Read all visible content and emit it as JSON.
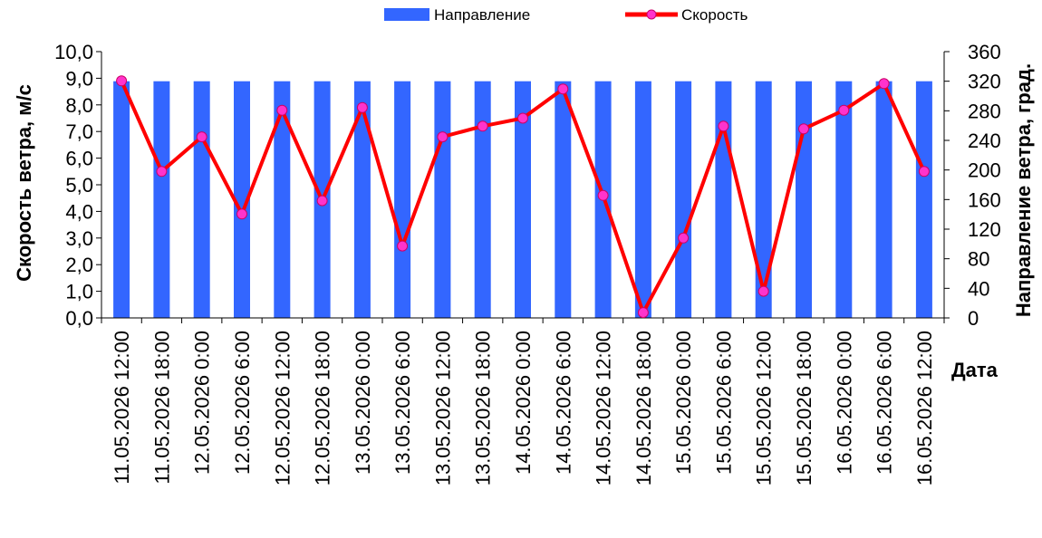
{
  "chart_data": {
    "type": "bar+line",
    "categories": [
      "11.05.2026 12:00",
      "11.05.2026 18:00",
      "12.05.2026 0:00",
      "12.05.2026 6:00",
      "12.05.2026 12:00",
      "12.05.2026 18:00",
      "13.05.2026 0:00",
      "13.05.2026 6:00",
      "13.05.2026 12:00",
      "13.05.2026 18:00",
      "14.05.2026 0:00",
      "14.05.2026 6:00",
      "14.05.2026 12:00",
      "14.05.2026 18:00",
      "15.05.2026 0:00",
      "15.05.2026 6:00",
      "15.05.2026 12:00",
      "15.05.2026 18:00",
      "16.05.2026 0:00",
      "16.05.2026 6:00",
      "16.05.2026 12:00"
    ],
    "series": [
      {
        "name": "Направление",
        "type": "bar",
        "axis": "right",
        "color": "#3366ff",
        "values": [
          320,
          320,
          320,
          320,
          320,
          320,
          320,
          320,
          320,
          320,
          320,
          320,
          320,
          320,
          320,
          320,
          320,
          320,
          320,
          320,
          320
        ]
      },
      {
        "name": "Скорость",
        "type": "line",
        "axis": "left",
        "color": "#ff0000",
        "marker_color": "#ff33cc",
        "values": [
          8.9,
          5.5,
          6.8,
          3.9,
          7.8,
          4.4,
          7.9,
          2.7,
          6.8,
          7.2,
          7.5,
          8.6,
          4.6,
          0.2,
          3.0,
          7.2,
          1.0,
          7.1,
          7.8,
          8.8,
          5.5
        ]
      }
    ],
    "y_left": {
      "label": "Скорость ветра, м/с",
      "ylim": [
        0,
        10
      ],
      "ticks": [
        "0,0",
        "1,0",
        "2,0",
        "3,0",
        "4,0",
        "5,0",
        "6,0",
        "7,0",
        "8,0",
        "9,0",
        "10,0"
      ]
    },
    "y_right": {
      "label": "Направление ветра, град.",
      "ylim": [
        0,
        360
      ],
      "ticks": [
        "0",
        "40",
        "80",
        "120",
        "160",
        "200",
        "240",
        "280",
        "320",
        "360"
      ]
    },
    "xlabel": "Дата",
    "legend": {
      "position": "top",
      "items": [
        "Направление",
        "Скорость"
      ]
    },
    "grid": false
  }
}
